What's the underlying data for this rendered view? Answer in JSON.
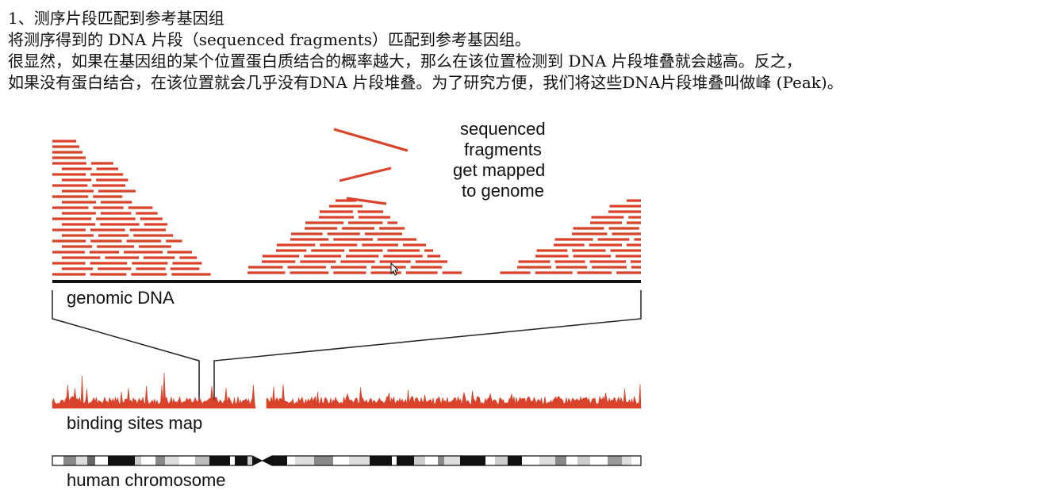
{
  "text": {
    "heading": "1、测序片段匹配到参考基因组",
    "line1": "将测序得到的 DNA 片段（sequenced fragments）匹配到参考基因组。",
    "line2": "很显然，如果在基因组的某个位置蛋白质结合的概率越大，那么在该位置检测到 DNA 片段堆叠就会越高。反之，",
    "line3": "如果没有蛋白结合，在该位置就会几乎没有DNA 片段堆叠。为了研究方便，我们将这些DNA片段堆叠叫做峰 (Peak)。"
  },
  "figure": {
    "caption_lines": [
      "sequenced",
      "fragments",
      "get mapped",
      "to genome"
    ],
    "genomic_dna_label": "genomic DNA",
    "binding_sites_label": "binding sites map",
    "chromosome_label": "human chromosome",
    "fragment_color": "#d9432b",
    "line_color": "#111111"
  }
}
